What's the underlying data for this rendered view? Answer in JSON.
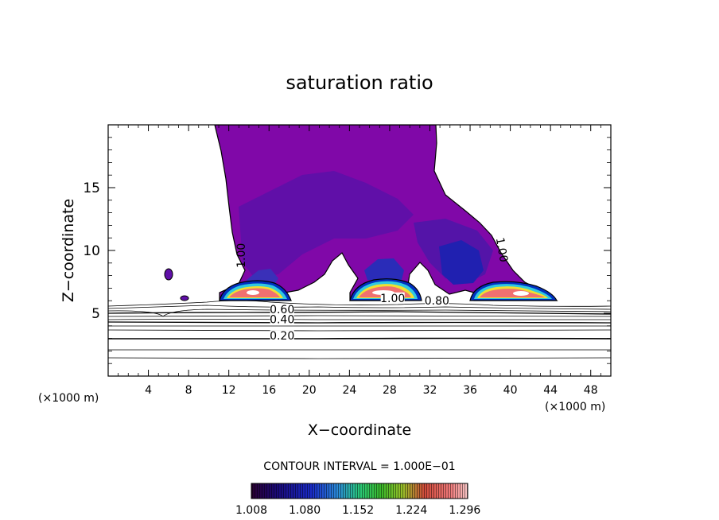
{
  "chart_data": {
    "type": "heatmap",
    "title": "saturation ratio",
    "xlabel": "X−coordinate",
    "ylabel": "Z−coordinate",
    "x_unit_left": "(×1000 m)",
    "x_unit_right": "(×1000 m)",
    "xlim": [
      0,
      50
    ],
    "ylim": [
      0,
      20
    ],
    "x_ticks": [
      4,
      8,
      12,
      16,
      20,
      24,
      28,
      32,
      36,
      40,
      44,
      48
    ],
    "y_ticks": [
      5,
      10,
      15
    ],
    "contour_interval_text": "CONTOUR INTERVAL = 1.000E−01",
    "colorbar": {
      "range": [
        1.008,
        1.3
      ],
      "ticks": [
        "1.008",
        "1.080",
        "1.152",
        "1.224",
        "1.296"
      ]
    },
    "contour_labels": [
      {
        "text": "1.00",
        "x": 13.6,
        "y": 9.6
      },
      {
        "text": "1.00",
        "x": 38.8,
        "y": 10.0
      },
      {
        "text": "1.00",
        "x": 28.3,
        "y": 5.9
      },
      {
        "text": "0.80",
        "x": 32.7,
        "y": 5.7
      },
      {
        "text": "0.60",
        "x": 17.3,
        "y": 5.0
      },
      {
        "text": "0.40",
        "x": 17.3,
        "y": 4.2
      },
      {
        "text": "0.20",
        "x": 17.3,
        "y": 2.9
      }
    ]
  }
}
